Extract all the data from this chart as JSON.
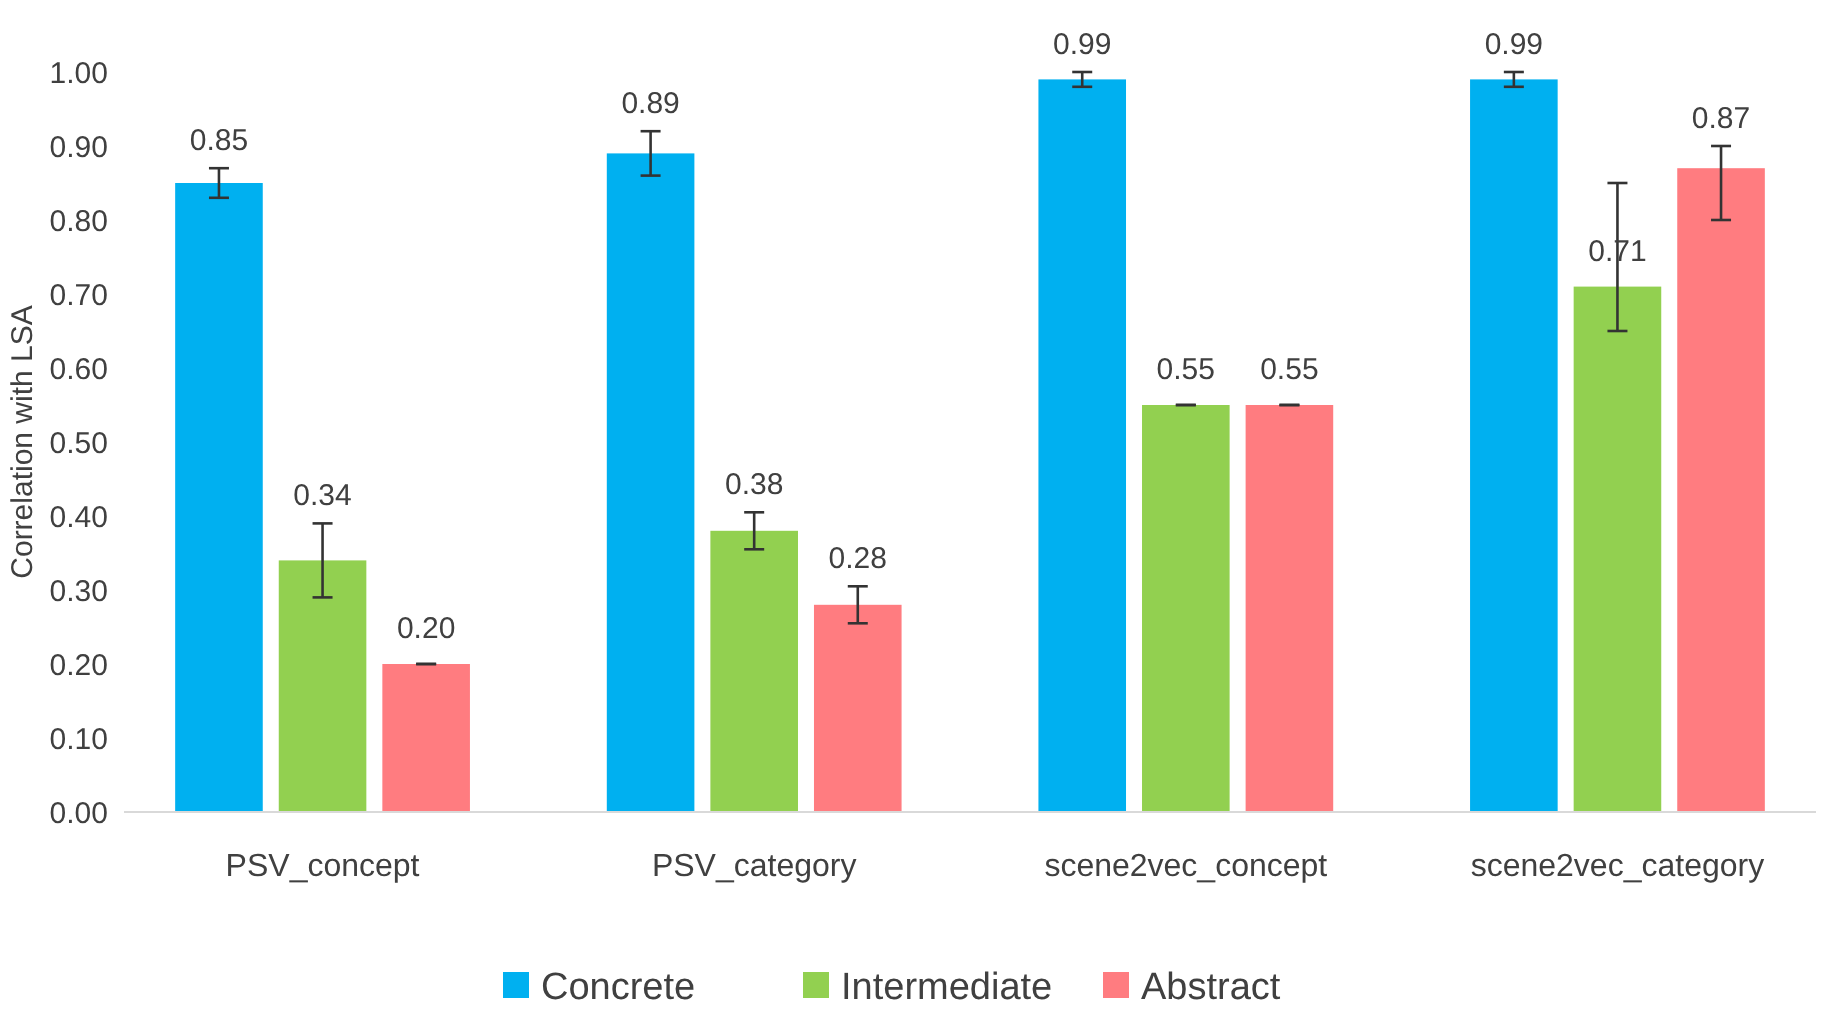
{
  "chart_data": {
    "type": "bar",
    "ylabel": "Correlation with LSA",
    "categories": [
      "PSV_concept",
      "PSV_category",
      "scene2vec_concept",
      "scene2vec_category"
    ],
    "series": [
      {
        "name": "Concrete",
        "color": "#00b0f0",
        "values": [
          0.85,
          0.89,
          0.99,
          0.99
        ],
        "errors": [
          0.02,
          0.03,
          0.01,
          0.01
        ],
        "value_labels": [
          "0.85",
          "0.89",
          "0.99",
          "0.99"
        ]
      },
      {
        "name": "Intermediate",
        "color": "#92d050",
        "values": [
          0.34,
          0.38,
          0.55,
          0.71
        ],
        "errors": [
          0.05,
          0.025,
          0,
          [
            0.65,
            0.85
          ]
        ],
        "value_labels": [
          "0.34",
          "0.38",
          "0.55",
          "0.71"
        ]
      },
      {
        "name": "Abstract",
        "color": "#ff7c80",
        "values": [
          0.2,
          0.28,
          0.55,
          0.87
        ],
        "errors": [
          0,
          0.025,
          0,
          [
            0.8,
            0.9
          ]
        ],
        "value_labels": [
          "0.20",
          "0.28",
          "0.55",
          "0.87"
        ]
      }
    ],
    "ylim": [
      0,
      1
    ],
    "yticks": [
      {
        "value": 0,
        "label": "0.00"
      },
      {
        "value": 0.1,
        "label": "0.10"
      },
      {
        "value": 0.2,
        "label": "0.20"
      },
      {
        "value": 0.3,
        "label": "0.30"
      },
      {
        "value": 0.4,
        "label": "0.40"
      },
      {
        "value": 0.5,
        "label": "0.50"
      },
      {
        "value": 0.6,
        "label": "0.60"
      },
      {
        "value": 0.7,
        "label": "0.70"
      },
      {
        "value": 0.8,
        "label": "0.80"
      },
      {
        "value": 0.9,
        "label": "0.90"
      },
      {
        "value": 1,
        "label": "1.00"
      }
    ],
    "grid": false,
    "legend": "bottom"
  }
}
